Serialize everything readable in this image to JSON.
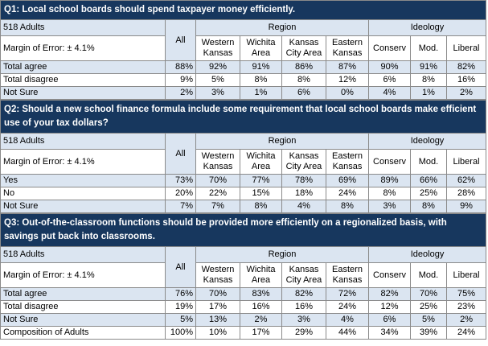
{
  "columns": {
    "sample": "518 Adults",
    "margin": "Margin of Error: ± 4.1%",
    "all": "All",
    "region": "Region",
    "ideology": "Ideology",
    "subgroups": [
      "Western Kansas",
      "Wichita Area",
      "Kansas City Area",
      "Eastern Kansas",
      "Conserv",
      "Mod.",
      "Liberal"
    ]
  },
  "questions": [
    {
      "title": "Q1: Local school boards should spend taxpayer money efficiently.",
      "rows": [
        {
          "label": "Total agree",
          "values": [
            "88%",
            "92%",
            "91%",
            "86%",
            "87%",
            "90%",
            "91%",
            "82%"
          ]
        },
        {
          "label": "Total disagree",
          "values": [
            "9%",
            "5%",
            "8%",
            "8%",
            "12%",
            "6%",
            "8%",
            "16%"
          ]
        },
        {
          "label": "Not Sure",
          "values": [
            "2%",
            "3%",
            "1%",
            "6%",
            "0%",
            "4%",
            "1%",
            "2%"
          ]
        }
      ]
    },
    {
      "title": "Q2: Should a new school finance formula include some requirement that local school boards make efficient use of your tax dollars?",
      "rows": [
        {
          "label": "Yes",
          "values": [
            "73%",
            "70%",
            "77%",
            "78%",
            "69%",
            "89%",
            "66%",
            "62%"
          ]
        },
        {
          "label": "No",
          "values": [
            "20%",
            "22%",
            "15%",
            "18%",
            "24%",
            "8%",
            "25%",
            "28%"
          ]
        },
        {
          "label": "Not Sure",
          "values": [
            "7%",
            "7%",
            "8%",
            "4%",
            "8%",
            "3%",
            "8%",
            "9%"
          ]
        }
      ]
    },
    {
      "title": "Q3: Out-of-the-classroom functions should be provided more efficiently on a regionalized basis, with savings put back into classrooms.",
      "rows": [
        {
          "label": "Total agree",
          "values": [
            "76%",
            "70%",
            "83%",
            "82%",
            "72%",
            "82%",
            "70%",
            "75%"
          ]
        },
        {
          "label": "Total disagree",
          "values": [
            "19%",
            "17%",
            "16%",
            "16%",
            "24%",
            "12%",
            "25%",
            "23%"
          ]
        },
        {
          "label": "Not Sure",
          "values": [
            "5%",
            "13%",
            "2%",
            "3%",
            "4%",
            "6%",
            "5%",
            "2%"
          ]
        },
        {
          "label": "Composition of Adults",
          "values": [
            "100%",
            "10%",
            "17%",
            "29%",
            "44%",
            "34%",
            "39%",
            "24%"
          ]
        }
      ]
    }
  ]
}
